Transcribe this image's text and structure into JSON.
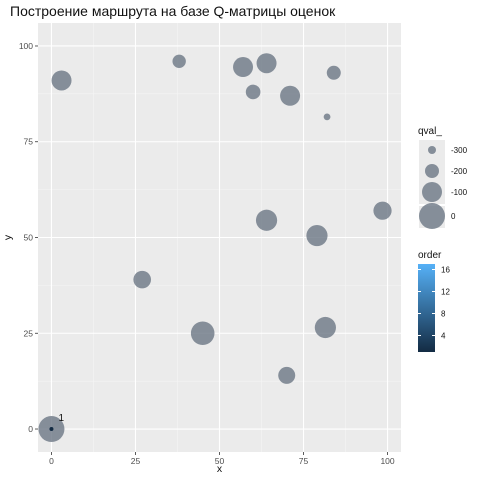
{
  "chart_data": {
    "type": "scatter",
    "title": "Построение маршрута на базе Q-матрицы оценок",
    "xlabel": "x",
    "ylabel": "y",
    "xlim": [
      -4,
      104
    ],
    "ylim": [
      -6,
      106
    ],
    "x_ticks": [
      0,
      25,
      50,
      75,
      100
    ],
    "y_ticks": [
      0,
      25,
      50,
      75,
      100
    ],
    "grid": true,
    "point_color": "#6b7785",
    "panel_background": "#ebebeb",
    "points": [
      {
        "x": 0,
        "y": 0,
        "qval": 0
      },
      {
        "x": 3,
        "y": 91,
        "qval": -100
      },
      {
        "x": 38,
        "y": 96,
        "qval": -210
      },
      {
        "x": 57,
        "y": 94.5,
        "qval": -100
      },
      {
        "x": 64,
        "y": 95.5,
        "qval": -100
      },
      {
        "x": 60,
        "y": 88,
        "qval": -190
      },
      {
        "x": 71,
        "y": 87,
        "qval": -100
      },
      {
        "x": 84,
        "y": 93,
        "qval": -200
      },
      {
        "x": 82,
        "y": 81.5,
        "qval": -320
      },
      {
        "x": 98.5,
        "y": 57,
        "qval": -130
      },
      {
        "x": 64,
        "y": 54.5,
        "qval": -80
      },
      {
        "x": 79,
        "y": 50.5,
        "qval": -80
      },
      {
        "x": 27,
        "y": 39,
        "qval": -140
      },
      {
        "x": 45,
        "y": 25,
        "qval": -40
      },
      {
        "x": 81.5,
        "y": 26.5,
        "qval": -80
      },
      {
        "x": 70,
        "y": 14,
        "qval": -150
      }
    ],
    "route": [
      {
        "x": 0,
        "y": 0,
        "order": 1,
        "label": "1"
      }
    ],
    "size_legend": {
      "title": "qval_",
      "breaks": [
        -300,
        -200,
        -100,
        0
      ],
      "labels": [
        "-300",
        "-200",
        "-100",
        "0"
      ]
    },
    "color_legend": {
      "title": "order",
      "range": [
        1,
        17
      ],
      "breaks": [
        4,
        8,
        12,
        16
      ],
      "labels": [
        "4",
        "8",
        "12",
        "16"
      ],
      "low_color": "#132b43",
      "high_color": "#56b1f7"
    }
  }
}
